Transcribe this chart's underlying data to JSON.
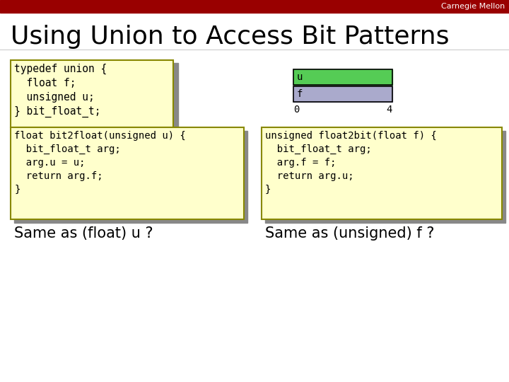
{
  "title": "Using Union to Access Bit Patterns",
  "header_text": "Carnegie Mellon",
  "header_bg": "#990000",
  "header_text_color": "#ffffff",
  "slide_bg": "#ffffff",
  "title_color": "#000000",
  "title_fontsize": 26,
  "box_bg": "#ffffcc",
  "box_border": "#888800",
  "typedef_text": "typedef union {\n  float f;\n  unsigned u;\n} bit_float_t;",
  "left_func_text": "float bit2float(unsigned u) {\n  bit_float_t arg;\n  arg.u = u;\n  return arg.f;\n}",
  "right_func_text": "unsigned float2bit(float f) {\n  bit_float_t arg;\n  arg.f = f;\n  return arg.u;\n}",
  "same_left": "Same as (float) u ?",
  "same_right": "Same as (unsigned) f ?",
  "u_bar_color": "#55cc55",
  "f_bar_color": "#aaaacc",
  "shadow_color": "#888888"
}
